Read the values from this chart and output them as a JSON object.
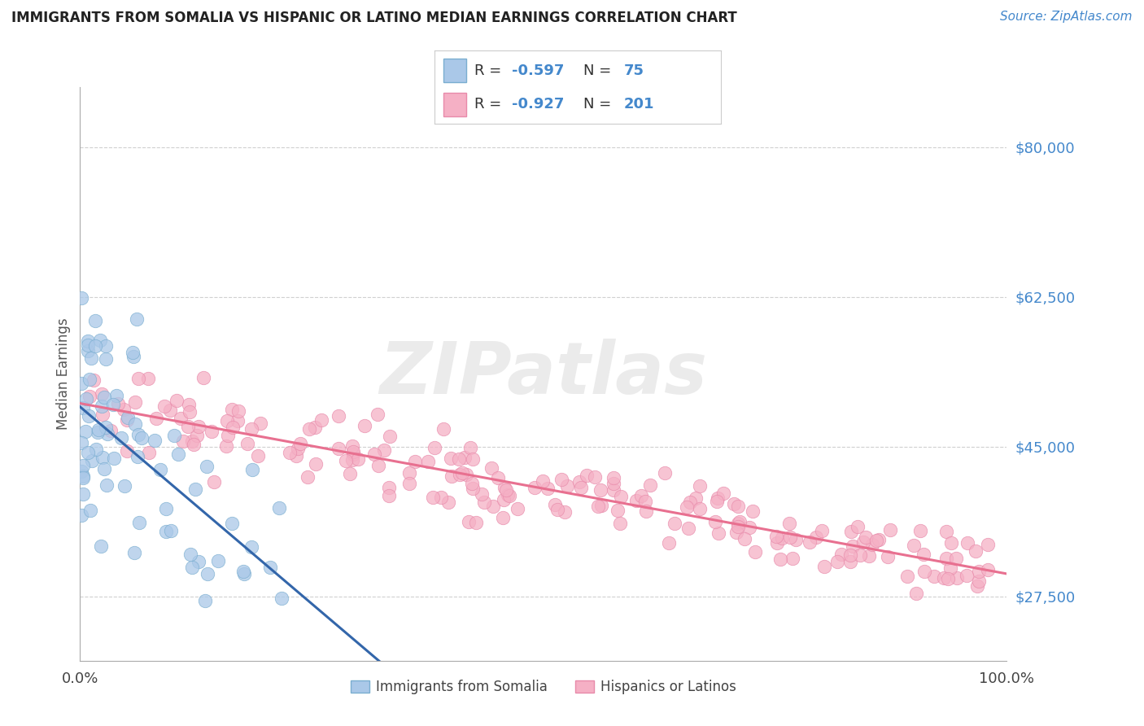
{
  "title": "IMMIGRANTS FROM SOMALIA VS HISPANIC OR LATINO MEDIAN EARNINGS CORRELATION CHART",
  "source": "Source: ZipAtlas.com",
  "ylabel": "Median Earnings",
  "yticks": [
    27500,
    45000,
    62500,
    80000
  ],
  "ytick_labels": [
    "$27,500",
    "$45,000",
    "$62,500",
    "$80,000"
  ],
  "ylim": [
    20000,
    87000
  ],
  "xlim": [
    0,
    100
  ],
  "xtick_positions": [
    0,
    100
  ],
  "xtick_labels": [
    "0.0%",
    "100.0%"
  ],
  "somalia_R": "-0.597",
  "somalia_N": "75",
  "hispanic_R": "-0.927",
  "hispanic_N": "201",
  "somalia_fill": "#aac8e8",
  "somalia_edge": "#7aaed0",
  "hispanic_fill": "#f5b0c5",
  "hispanic_edge": "#e88aaa",
  "trend_somalia_color": "#3366aa",
  "trend_hispanic_color": "#e87090",
  "legend_somalia_label": "Immigrants from Somalia",
  "legend_hispanic_label": "Hispanics or Latinos",
  "watermark": "ZIPatlas",
  "bg_color": "#ffffff",
  "grid_color": "#d0d0d0",
  "title_color": "#222222",
  "source_color": "#4488cc",
  "axis_label_color": "#555555",
  "ytick_color": "#4488cc",
  "xtick_color": "#444444",
  "legend_text_color": "#4488cc"
}
